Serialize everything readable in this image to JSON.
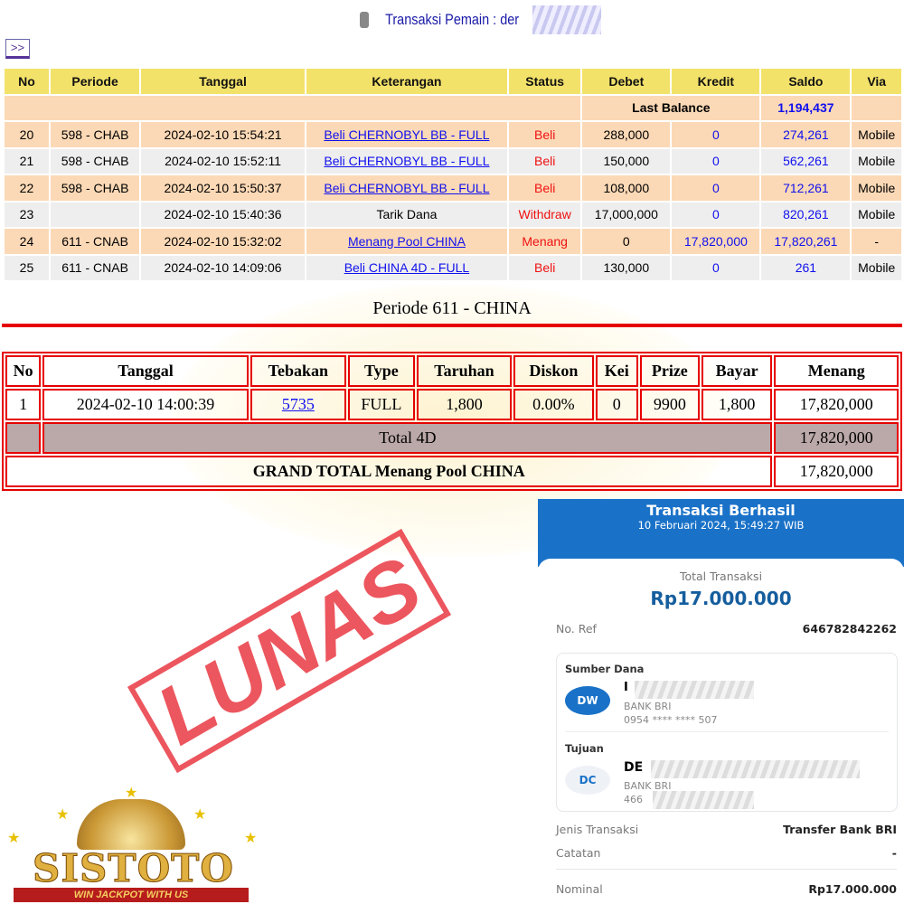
{
  "header": {
    "title": "Transaksi  Pemain : der",
    "nav_button": ">>"
  },
  "table1": {
    "columns": [
      "No",
      "Periode",
      "Tanggal",
      "Keterangan",
      "Status",
      "Debet",
      "Kredit",
      "Saldo",
      "Via"
    ],
    "last_balance_label": "Last Balance",
    "last_balance": "1,194,437",
    "rows": [
      {
        "no": "20",
        "periode": "598 - CHAB",
        "tanggal": "2024-02-10 15:54:21",
        "ket": "Beli CHERNOBYL BB - FULL",
        "link": true,
        "status": "Beli",
        "debet": "288,000",
        "kredit": "0",
        "saldo": "274,261",
        "via": "Mobile"
      },
      {
        "no": "21",
        "periode": "598 - CHAB",
        "tanggal": "2024-02-10 15:52:11",
        "ket": "Beli CHERNOBYL BB - FULL",
        "link": true,
        "status": "Beli",
        "debet": "150,000",
        "kredit": "0",
        "saldo": "562,261",
        "via": "Mobile"
      },
      {
        "no": "22",
        "periode": "598 - CHAB",
        "tanggal": "2024-02-10 15:50:37",
        "ket": "Beli CHERNOBYL BB - FULL",
        "link": true,
        "status": "Beli",
        "debet": "108,000",
        "kredit": "0",
        "saldo": "712,261",
        "via": "Mobile"
      },
      {
        "no": "23",
        "periode": "",
        "tanggal": "2024-02-10 15:40:36",
        "ket": "Tarik Dana",
        "link": false,
        "status": "Withdraw",
        "debet": "17,000,000",
        "kredit": "0",
        "saldo": "820,261",
        "via": "Mobile"
      },
      {
        "no": "24",
        "periode": "611 - CNAB",
        "tanggal": "2024-02-10 15:32:02",
        "ket": "Menang Pool CHINA",
        "link": true,
        "status": "Menang",
        "debet": "0",
        "kredit": "17,820,000",
        "saldo": "17,820,261",
        "via": "-"
      },
      {
        "no": "25",
        "periode": "611 - CNAB",
        "tanggal": "2024-02-10 14:09:06",
        "ket": "Beli CHINA 4D - FULL",
        "link": true,
        "status": "Beli",
        "debet": "130,000",
        "kredit": "0",
        "saldo": "261",
        "via": "Mobile"
      }
    ]
  },
  "periode_title": "Periode 611 - CHINA",
  "table2": {
    "columns": [
      "No",
      "Tanggal",
      "Tebakan",
      "Type",
      "Taruhan",
      "Diskon",
      "Kei",
      "Prize",
      "Bayar",
      "Menang"
    ],
    "row": [
      "1",
      "2024-02-10 14:00:39",
      "5735",
      "FULL",
      "1,800",
      "0.00%",
      "0",
      "9900",
      "1,800",
      "17,820,000"
    ],
    "total_label": "Total 4D",
    "total": "17,820,000",
    "grand_label": "GRAND TOTAL  Menang Pool CHINA",
    "grand": "17,820,000"
  },
  "stamp": "LUNAS",
  "receipt": {
    "title": "Transaksi Berhasil",
    "datetime": "10 Februari 2024, 15:49:27 WIB",
    "total_label": "Total Transaksi",
    "total": "Rp17.000.000",
    "ref_label": "No. Ref",
    "ref": "646782842262",
    "source_label": "Sumber Dana",
    "source_initials": "DW",
    "source_name": "I",
    "source_bank": "BANK BRI",
    "source_account": "0954 **** **** 507",
    "dest_label": "Tujuan",
    "dest_initials": "DC",
    "dest_name": "DE",
    "dest_bank": "BANK BRI",
    "dest_account": "466",
    "type_label": "Jenis Transaksi",
    "type": "Transfer Bank BRI",
    "note_label": "Catatan",
    "note": "-",
    "nominal_label": "Nominal",
    "nominal": "Rp17.000.000",
    "watermark": "BRI",
    "brand_color": "#1a72c8"
  },
  "logo": {
    "name": "SISTOTO",
    "tagline": "WIN JACKPOT WITH US"
  }
}
